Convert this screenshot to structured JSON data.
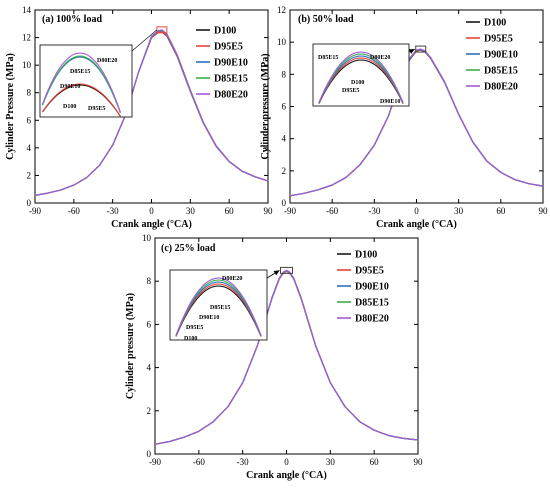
{
  "series_colors": {
    "D100": "#1a1a1a",
    "D95E5": "#e8443a",
    "D90E10": "#2a6fbf",
    "D85E15": "#3bb04a",
    "D80E20": "#a25ad8"
  },
  "chart_data": [
    {
      "type": "line",
      "title": "(a) 100% load",
      "xlabel": "Crank angle (°CA)",
      "ylabel": "Cylinder Pressure (MPa)",
      "xlim": [
        -90,
        90
      ],
      "ylim": [
        0,
        14
      ],
      "x_ticks": [
        "-90",
        "-60",
        "-30",
        "0",
        "30",
        "60",
        "90"
      ],
      "y_ticks": [
        "0",
        "2",
        "4",
        "6",
        "8",
        "10",
        "12",
        "14"
      ],
      "legend": [
        "D100",
        "D95E5",
        "D90E10",
        "D85E15",
        "D80E20"
      ],
      "legend_position": "top-right",
      "peak_box": "top of peak",
      "inset_position": "left",
      "inset_labels": [
        "D80E20",
        "D85E15",
        "D90E10",
        "D100",
        "D95E5"
      ],
      "x": [
        -90,
        -80,
        -70,
        -60,
        -50,
        -40,
        -30,
        -20,
        -10,
        0,
        5,
        8,
        12,
        20,
        30,
        40,
        50,
        60,
        70,
        80,
        90
      ],
      "series": [
        {
          "name": "D100",
          "values": [
            0.55,
            0.72,
            0.95,
            1.3,
            1.85,
            2.75,
            4.2,
            6.4,
            9.5,
            12.0,
            12.35,
            12.4,
            12.1,
            10.6,
            8.1,
            5.8,
            4.1,
            3.0,
            2.3,
            1.9,
            1.6
          ]
        },
        {
          "name": "D95E5",
          "values": [
            0.55,
            0.72,
            0.95,
            1.3,
            1.85,
            2.75,
            4.2,
            6.4,
            9.5,
            12.0,
            12.36,
            12.42,
            12.12,
            10.62,
            8.12,
            5.81,
            4.11,
            3.0,
            2.3,
            1.9,
            1.6
          ]
        },
        {
          "name": "D90E10",
          "values": [
            0.55,
            0.72,
            0.95,
            1.3,
            1.85,
            2.75,
            4.2,
            6.4,
            9.5,
            12.05,
            12.44,
            12.5,
            12.2,
            10.68,
            8.16,
            5.84,
            4.13,
            3.01,
            2.31,
            1.9,
            1.6
          ]
        },
        {
          "name": "D85E15",
          "values": [
            0.55,
            0.72,
            0.95,
            1.3,
            1.85,
            2.75,
            4.2,
            6.4,
            9.5,
            12.07,
            12.47,
            12.53,
            12.23,
            10.7,
            8.18,
            5.85,
            4.14,
            3.02,
            2.31,
            1.9,
            1.6
          ]
        },
        {
          "name": "D80E20",
          "values": [
            0.55,
            0.72,
            0.95,
            1.3,
            1.85,
            2.75,
            4.2,
            6.4,
            9.5,
            12.1,
            12.5,
            12.56,
            12.26,
            10.72,
            8.2,
            5.86,
            4.15,
            3.02,
            2.32,
            1.91,
            1.6
          ]
        }
      ]
    },
    {
      "type": "line",
      "title": "(b) 50% load",
      "xlabel": "Crank angle (°CA)",
      "ylabel": "Cylinder pressure (MPa)",
      "xlim": [
        -90,
        90
      ],
      "ylim": [
        0,
        12
      ],
      "x_ticks": [
        "-90",
        "-60",
        "-30",
        "0",
        "30",
        "60",
        "90"
      ],
      "y_ticks": [
        "0",
        "2",
        "4",
        "6",
        "8",
        "10",
        "12"
      ],
      "legend": [
        "D100",
        "D95E5",
        "D90E10",
        "D85E15",
        "D80E20"
      ],
      "legend_position": "top-right",
      "peak_box": "peak",
      "inset_position": "left",
      "inset_labels": [
        "D85E15",
        "D80E20",
        "D100",
        "D95E5",
        "D90E10"
      ],
      "x": [
        -90,
        -80,
        -70,
        -60,
        -50,
        -40,
        -30,
        -20,
        -10,
        -5,
        0,
        3,
        6,
        10,
        20,
        30,
        40,
        50,
        60,
        70,
        80,
        90
      ],
      "series": [
        {
          "name": "D100",
          "values": [
            0.45,
            0.6,
            0.82,
            1.12,
            1.6,
            2.4,
            3.6,
            5.4,
            7.9,
            8.9,
            9.45,
            9.5,
            9.4,
            9.0,
            7.5,
            5.5,
            3.8,
            2.6,
            1.9,
            1.45,
            1.2,
            1.05
          ]
        },
        {
          "name": "D95E5",
          "values": [
            0.45,
            0.6,
            0.82,
            1.12,
            1.6,
            2.4,
            3.6,
            5.4,
            7.92,
            8.92,
            9.46,
            9.51,
            9.41,
            9.01,
            7.51,
            5.5,
            3.8,
            2.6,
            1.9,
            1.45,
            1.2,
            1.05
          ]
        },
        {
          "name": "D90E10",
          "values": [
            0.45,
            0.6,
            0.82,
            1.12,
            1.6,
            2.4,
            3.6,
            5.4,
            7.95,
            8.95,
            9.48,
            9.53,
            9.43,
            9.03,
            7.52,
            5.51,
            3.81,
            2.61,
            1.9,
            1.45,
            1.2,
            1.05
          ]
        },
        {
          "name": "D85E15",
          "values": [
            0.45,
            0.6,
            0.82,
            1.12,
            1.6,
            2.4,
            3.6,
            5.4,
            7.97,
            8.97,
            9.5,
            9.55,
            9.45,
            9.04,
            7.53,
            5.52,
            3.81,
            2.61,
            1.9,
            1.45,
            1.2,
            1.05
          ]
        },
        {
          "name": "D80E20",
          "values": [
            0.45,
            0.6,
            0.82,
            1.12,
            1.6,
            2.4,
            3.6,
            5.4,
            8.0,
            9.0,
            9.52,
            9.57,
            9.47,
            9.05,
            7.54,
            5.52,
            3.82,
            2.62,
            1.91,
            1.46,
            1.2,
            1.05
          ]
        }
      ]
    },
    {
      "type": "line",
      "title": "(c) 25% load",
      "xlabel": "Crank angle (°CA)",
      "ylabel": "Cylinder pressure (MPa)",
      "xlim": [
        -90,
        90
      ],
      "ylim": [
        0,
        10
      ],
      "x_ticks": [
        "-90",
        "-60",
        "-30",
        "0",
        "30",
        "60",
        "90"
      ],
      "y_ticks": [
        "0",
        "2",
        "4",
        "6",
        "8",
        "10"
      ],
      "legend": [
        "D100",
        "D95E5",
        "D90E10",
        "D85E15",
        "D80E20"
      ],
      "legend_position": "top-right",
      "peak_box": "peak",
      "inset_position": "left",
      "inset_labels": [
        "D80E20",
        "D85E15",
        "D90E10",
        "D95E5",
        "D100"
      ],
      "x": [
        -90,
        -80,
        -70,
        -60,
        -50,
        -40,
        -30,
        -20,
        -10,
        -5,
        -2,
        0,
        2,
        5,
        10,
        20,
        30,
        40,
        50,
        60,
        70,
        80,
        90
      ],
      "series": [
        {
          "name": "D100",
          "values": [
            0.45,
            0.58,
            0.78,
            1.05,
            1.5,
            2.2,
            3.3,
            5.0,
            7.2,
            8.1,
            8.4,
            8.45,
            8.4,
            8.1,
            7.2,
            5.0,
            3.3,
            2.2,
            1.5,
            1.1,
            0.85,
            0.72,
            0.65
          ]
        },
        {
          "name": "D95E5",
          "values": [
            0.45,
            0.58,
            0.78,
            1.05,
            1.5,
            2.2,
            3.3,
            5.0,
            7.21,
            8.11,
            8.41,
            8.46,
            8.41,
            8.11,
            7.21,
            5.0,
            3.3,
            2.2,
            1.5,
            1.1,
            0.85,
            0.72,
            0.65
          ]
        },
        {
          "name": "D90E10",
          "values": [
            0.45,
            0.58,
            0.78,
            1.05,
            1.5,
            2.2,
            3.3,
            5.0,
            7.22,
            8.12,
            8.42,
            8.47,
            8.42,
            8.12,
            7.22,
            5.01,
            3.3,
            2.2,
            1.5,
            1.1,
            0.85,
            0.72,
            0.65
          ]
        },
        {
          "name": "D85E15",
          "values": [
            0.45,
            0.58,
            0.78,
            1.05,
            1.5,
            2.2,
            3.3,
            5.0,
            7.23,
            8.13,
            8.43,
            8.48,
            8.43,
            8.13,
            7.23,
            5.01,
            3.31,
            2.2,
            1.5,
            1.1,
            0.85,
            0.72,
            0.65
          ]
        },
        {
          "name": "D80E20",
          "values": [
            0.45,
            0.58,
            0.78,
            1.05,
            1.5,
            2.2,
            3.3,
            5.0,
            7.24,
            8.14,
            8.44,
            8.5,
            8.44,
            8.14,
            7.24,
            5.02,
            3.31,
            2.2,
            1.5,
            1.1,
            0.85,
            0.72,
            0.65
          ]
        }
      ]
    }
  ]
}
